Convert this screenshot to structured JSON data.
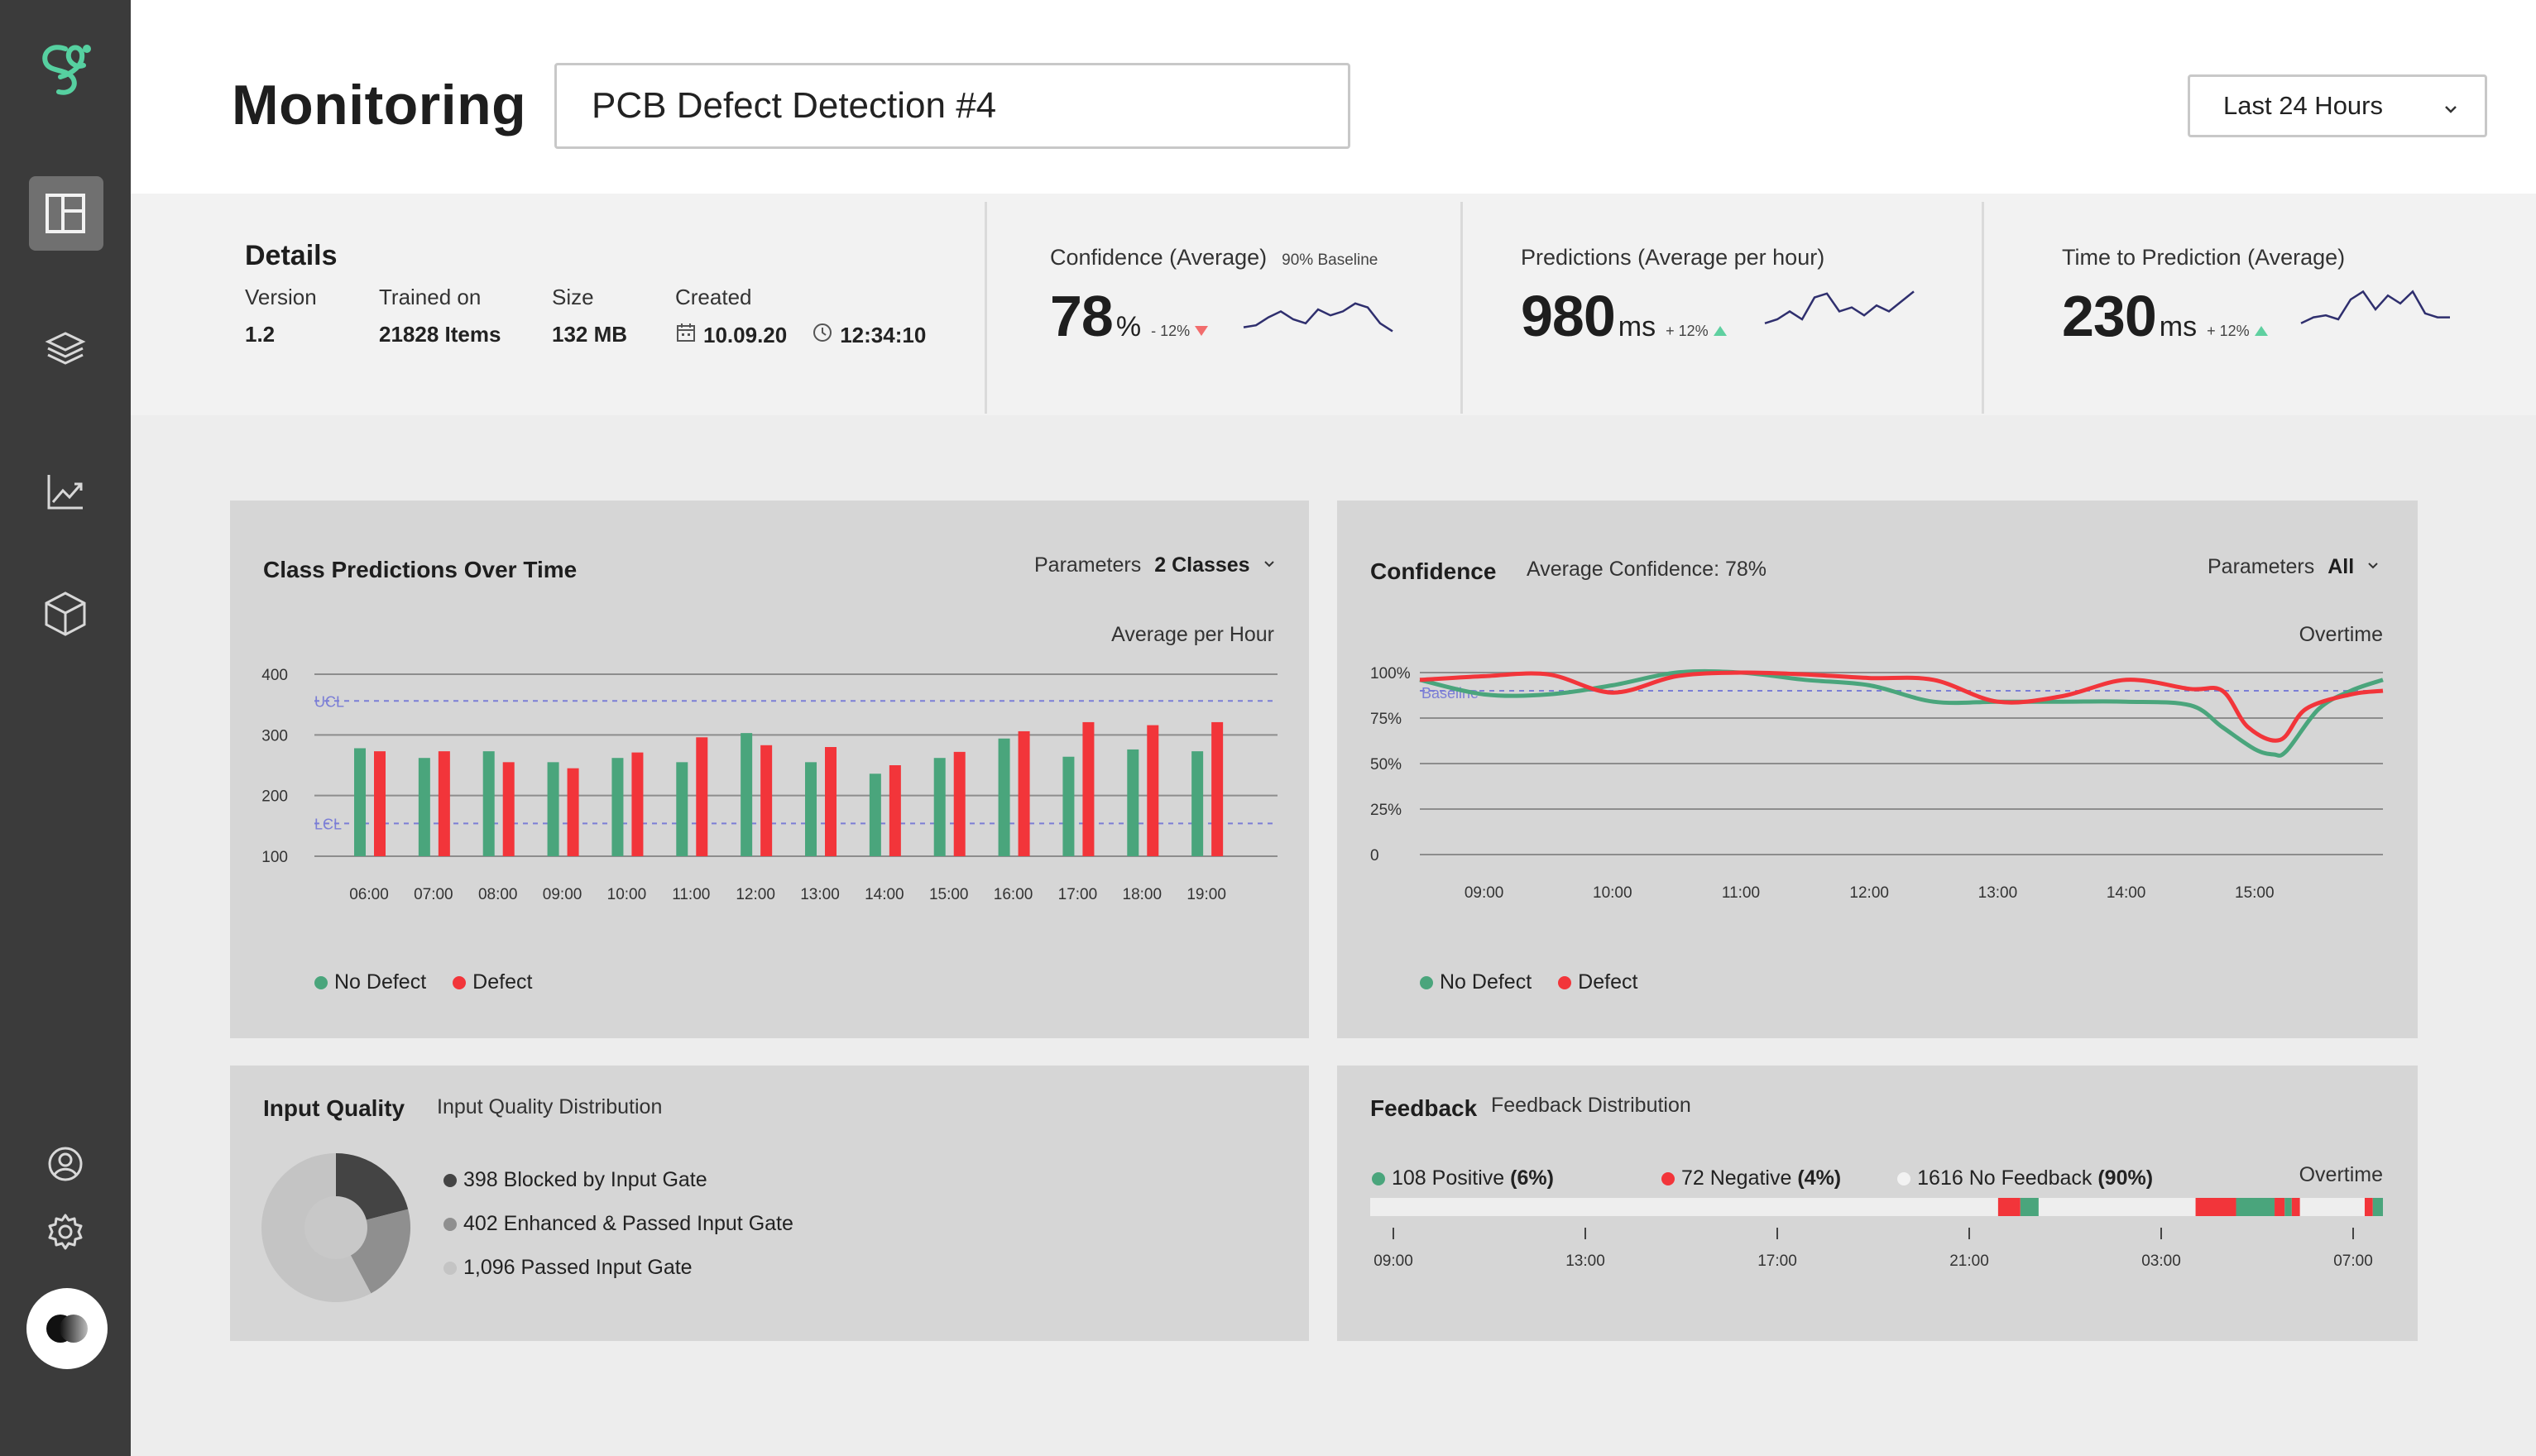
{
  "header": {
    "title": "Monitoring",
    "model_name": "PCB Defect Detection #4",
    "time_range": "Last 24 Hours"
  },
  "sidebar": {
    "items": [
      "dashboard",
      "layers",
      "analytics",
      "models"
    ],
    "bottom": [
      "profile",
      "settings"
    ]
  },
  "details": {
    "title": "Details",
    "version_label": "Version",
    "version": "1.2",
    "trained_label": "Trained on",
    "trained": "21828 Items",
    "size_label": "Size",
    "size": "132 MB",
    "created_label": "Created",
    "created_date": "10.09.20",
    "created_time": "12:34:10"
  },
  "stats": {
    "confidence": {
      "label": "Confidence (Average)",
      "baseline": "90% Baseline",
      "value": "78",
      "unit": "%",
      "delta": "- 12%",
      "spark": [
        28,
        26,
        18,
        12,
        20,
        24,
        10,
        16,
        12,
        4,
        8,
        24,
        32
      ]
    },
    "predictions": {
      "label": "Predictions (Average per hour)",
      "value": "980",
      "unit": "ms",
      "delta": "+ 12%",
      "spark": [
        34,
        30,
        22,
        30,
        8,
        4,
        22,
        18,
        26,
        16,
        22,
        12,
        2
      ]
    },
    "time_to_prediction": {
      "label": "Time to Prediction (Average)",
      "value": "230",
      "unit": "ms",
      "delta": "+ 12%",
      "spark": [
        34,
        28,
        26,
        30,
        10,
        2,
        20,
        6,
        14,
        2,
        24,
        28,
        28
      ]
    }
  },
  "class_predictions": {
    "title": "Class Predictions Over Time",
    "param_label": "Parameters",
    "param_value": "2 Classes",
    "note": "Average per Hour",
    "ucl_label": "UCL",
    "lcl_label": "LCL",
    "legend": [
      "No Defect",
      "Defect"
    ]
  },
  "confidence_panel": {
    "title": "Confidence",
    "subtitle": "Average Confidence: 78%",
    "param_label": "Parameters",
    "param_value": "All",
    "note": "Overtime",
    "baseline_label": "Baseline",
    "legend": [
      "No Defect",
      "Defect"
    ]
  },
  "input_quality": {
    "title": "Input Quality",
    "subtitle": "Input Quality Distribution",
    "legend": [
      "398 Blocked by Input Gate",
      "402 Enhanced & Passed Input Gate",
      "1,096 Passed Input Gate"
    ]
  },
  "feedback": {
    "title": "Feedback",
    "subtitle": "Feedback Distribution",
    "note": "Overtime",
    "positive": "108 Positive",
    "positive_pct": "(6%)",
    "negative": "72 Negative",
    "negative_pct": "(4%)",
    "none": "1616 No Feedback",
    "none_pct": "(90%)",
    "ticks": [
      "09:00",
      "13:00",
      "17:00",
      "21:00",
      "03:00",
      "07:00"
    ]
  },
  "colors": {
    "green": "#4aa57c",
    "red": "#f2353a",
    "grey_dark": "#444444",
    "grey_mid": "#8f8f8f",
    "grey_light": "#c4c4c4",
    "accent": "#56d0a0",
    "baseline": "#7b7ed6"
  },
  "chart_data": [
    {
      "type": "bar",
      "title": "Class Predictions Over Time",
      "categories": [
        "06:00",
        "07:00",
        "08:00",
        "09:00",
        "10:00",
        "11:00",
        "12:00",
        "13:00",
        "14:00",
        "15:00",
        "16:00",
        "17:00",
        "18:00",
        "19:00"
      ],
      "series": [
        {
          "name": "No Defect",
          "values": [
            278,
            262,
            273,
            255,
            262,
            255,
            303,
            255,
            236,
            262,
            294,
            264,
            276,
            273
          ]
        },
        {
          "name": "Defect",
          "values": [
            273,
            273,
            255,
            245,
            271,
            296,
            283,
            280,
            250,
            272,
            306,
            321,
            316,
            321
          ]
        }
      ],
      "y_ticks": [
        100,
        200,
        300,
        400
      ],
      "ylim": [
        100,
        400
      ],
      "reference_lines": {
        "UCL": 356,
        "LCL": 154
      },
      "grid": true,
      "legend_position": "bottom-left"
    },
    {
      "type": "line",
      "title": "Confidence",
      "x_ticks": [
        "09:00",
        "10:00",
        "11:00",
        "12:00",
        "13:00",
        "14:00",
        "15:00"
      ],
      "y_ticks": [
        "0",
        "25%",
        "50%",
        "75%",
        "100%"
      ],
      "ylim": [
        0,
        100
      ],
      "baseline": 90,
      "series": [
        {
          "name": "No Defect",
          "x": [
            8.5,
            9.0,
            9.5,
            10.0,
            10.5,
            11.0,
            11.5,
            12.0,
            12.5,
            13.0,
            13.5,
            14.0,
            14.5,
            14.75,
            15.0,
            15.15,
            15.25,
            15.5,
            15.75,
            16.0
          ],
          "y": [
            96,
            88,
            88,
            93,
            100,
            100,
            96,
            93,
            84,
            84,
            84,
            84,
            82,
            70,
            58,
            55,
            57,
            80,
            90,
            96
          ]
        },
        {
          "name": "Defect",
          "x": [
            8.5,
            9.0,
            9.5,
            10.0,
            10.5,
            11.0,
            11.5,
            12.0,
            12.5,
            13.0,
            13.5,
            14.0,
            14.5,
            14.75,
            14.95,
            15.2,
            15.4,
            15.75,
            16.0
          ],
          "y": [
            96,
            98,
            99,
            89,
            98,
            100,
            99,
            97,
            96,
            84,
            87,
            96,
            91,
            90,
            70,
            63,
            80,
            88,
            90
          ]
        }
      ],
      "legend_position": "bottom-left"
    },
    {
      "type": "pie",
      "title": "Input Quality Distribution",
      "categories": [
        "Blocked by Input Gate",
        "Enhanced & Passed Input Gate",
        "Passed Input Gate"
      ],
      "values": [
        398,
        402,
        1096
      ]
    },
    {
      "type": "bar",
      "title": "Feedback Distribution",
      "categories": [
        "Positive",
        "Negative",
        "No Feedback"
      ],
      "values": [
        108,
        72,
        1616
      ]
    }
  ]
}
